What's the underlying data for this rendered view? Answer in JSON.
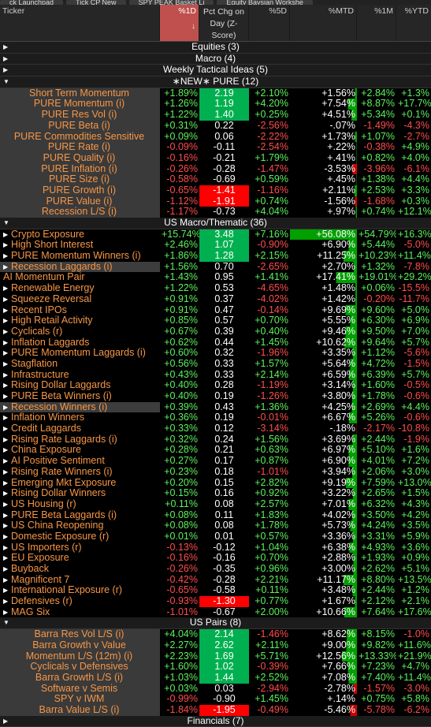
{
  "tabs": [
    "ck Launchpad",
    "Tick CP New",
    "SPY PEAK Basket Li",
    "Equity Baysian Workshe"
  ],
  "header": {
    "ticker": "Ticker",
    "d1": "%1D",
    "pct": "Pct Chg on Day (Z-Score)",
    "d5": "%5D",
    "mtd": "%MTD",
    "m1": "%1M",
    "ytd": "%YTD"
  },
  "colors": {
    "positive": "#5cf25c",
    "negative": "#ff4c4c",
    "name": "#f79646",
    "zcell_pos": "#00b050",
    "zcell_neg": "#ff0000"
  },
  "groups": [
    {
      "label": "Equities (3)",
      "collapsed": true,
      "rows": []
    },
    {
      "label": "Macro (4)",
      "collapsed": true,
      "rows": []
    },
    {
      "label": "Weekly Tactical Ideas (5)",
      "collapsed": true,
      "rows": []
    },
    {
      "label": "∗NEW∗ PURE (12)",
      "collapsed": false,
      "center": true,
      "rows": [
        {
          "n": "Short Term Momentum",
          "d1": "+1.89%",
          "pc": "2.19",
          "d5": "+2.10%",
          "mtd": "+1.56%",
          "m1": "+2.84%",
          "ytd": "+1.3%"
        },
        {
          "n": "PURE Momentum (i)",
          "d1": "+1.26%",
          "pc": "1.19",
          "d5": "+4.20%",
          "mtd": "+7.54%",
          "m1": "+8.87%",
          "ytd": "+17.7%"
        },
        {
          "n": "PURE Res Vol (i)",
          "d1": "+1.22%",
          "pc": "1.40",
          "d5": "+0.25%",
          "mtd": "+4.51%",
          "m1": "+5.34%",
          "ytd": "+0.1%"
        },
        {
          "n": "PURE Beta (i)",
          "d1": "+0.31%",
          "pc": "0.22",
          "d5": "-2.56%",
          "mtd": "-.07%",
          "m1": "-1.49%",
          "ytd": "-4.3%"
        },
        {
          "n": "PURE Commodities Sensitive",
          "d1": "+0.09%",
          "pc": "0.06",
          "d5": "-2.22%",
          "mtd": "+1.73%",
          "m1": "+1.07%",
          "ytd": "-2.7%"
        },
        {
          "n": "PURE Rate (i)",
          "d1": "-0.09%",
          "pc": "-0.11",
          "d5": "-2.54%",
          "mtd": "+.22%",
          "m1": "-0.38%",
          "ytd": "+4.9%"
        },
        {
          "n": "PURE Quality (i)",
          "d1": "-0.16%",
          "pc": "-0.21",
          "d5": "+1.79%",
          "mtd": "+.41%",
          "m1": "+0.82%",
          "ytd": "+4.0%"
        },
        {
          "n": "PURE Inflation (i)",
          "d1": "-0.26%",
          "pc": "-0.28",
          "d5": "-1.47%",
          "mtd": "-3.53%",
          "m1": "-3.96%",
          "ytd": "-6.1%"
        },
        {
          "n": "PURE Size (i)",
          "d1": "-0.58%",
          "pc": "-0.69",
          "d5": "+0.59%",
          "mtd": "+.45%",
          "m1": "+1.38%",
          "ytd": "+4.4%"
        },
        {
          "n": "PURE Growth (i)",
          "d1": "-0.65%",
          "pc": "-1.41",
          "d5": "-1.16%",
          "mtd": "+2.11%",
          "m1": "+2.53%",
          "ytd": "+3.3%"
        },
        {
          "n": "PURE Value (i)",
          "d1": "-1.12%",
          "pc": "-1.91",
          "d5": "+0.74%",
          "mtd": "-1.56%",
          "m1": "-1.68%",
          "ytd": "+0.3%"
        },
        {
          "n": "Recession L/S (i)",
          "d1": "-1.17%",
          "pc": "-0.73",
          "d5": "+4.04%",
          "mtd": "+.97%",
          "m1": "+0.74%",
          "ytd": "+12.1%"
        }
      ]
    },
    {
      "label": "US Macro/Thematic (36)",
      "collapsed": false,
      "rows": [
        {
          "n": "Crypto Exposure",
          "d1": "+15.74%",
          "pc": "3.48",
          "d5": "+7.16%",
          "mtd": "+56.08%",
          "m1": "+54.79%",
          "ytd": "+16.3%"
        },
        {
          "n": "High Short Interest",
          "d1": "+2.46%",
          "pc": "1.07",
          "d5": "-0.90%",
          "mtd": "+6.90%",
          "m1": "+5.44%",
          "ytd": "-5.0%"
        },
        {
          "n": "PURE Momentum Winners (i)",
          "d1": "+1.86%",
          "pc": "1.28",
          "d5": "+2.15%",
          "mtd": "+11.25%",
          "m1": "+10.23%",
          "ytd": "+11.4%"
        },
        {
          "n": "Recession Laggards (i)",
          "d1": "+1.56%",
          "pc": "0.70",
          "d5": "-2.65%",
          "mtd": "+2.70%",
          "m1": "+1.32%",
          "ytd": "-7.8%",
          "sel": true
        },
        {
          "n": "AI Momentum Pair",
          "d1": "+1.43%",
          "pc": "0.95",
          "d5": "+1.41%",
          "mtd": "+17.41%",
          "m1": "+19.01%",
          "ytd": "+29.2%",
          "nomk": true
        },
        {
          "n": "Renewable Energy",
          "d1": "+1.22%",
          "pc": "0.53",
          "d5": "-4.65%",
          "mtd": "+1.48%",
          "m1": "+0.06%",
          "ytd": "-15.5%"
        },
        {
          "n": "Squeeze Reversal",
          "d1": "+0.91%",
          "pc": "0.37",
          "d5": "-4.02%",
          "mtd": "+1.42%",
          "m1": "-0.20%",
          "ytd": "-11.7%"
        },
        {
          "n": "Recent IPOs",
          "d1": "+0.91%",
          "pc": "0.47",
          "d5": "-0.14%",
          "mtd": "+9.69%",
          "m1": "+9.60%",
          "ytd": "+5.0%"
        },
        {
          "n": "High Retail Activity",
          "d1": "+0.85%",
          "pc": "0.57",
          "d5": "+0.70%",
          "mtd": "+5.55%",
          "m1": "+6.30%",
          "ytd": "+6.9%"
        },
        {
          "n": "Cyclicals (r)",
          "d1": "+0.67%",
          "pc": "0.39",
          "d5": "+0.40%",
          "mtd": "+9.46%",
          "m1": "+9.50%",
          "ytd": "+7.0%"
        },
        {
          "n": "Inflation Laggards",
          "d1": "+0.62%",
          "pc": "0.44",
          "d5": "+1.45%",
          "mtd": "+10.62%",
          "m1": "+9.64%",
          "ytd": "+5.7%"
        },
        {
          "n": "PURE Momentum Laggards (i)",
          "d1": "+0.60%",
          "pc": "0.32",
          "d5": "-1.96%",
          "mtd": "+3.35%",
          "m1": "+1.12%",
          "ytd": "-5.6%"
        },
        {
          "n": "Stagflation",
          "d1": "+0.56%",
          "pc": "0.33",
          "d5": "+1.57%",
          "mtd": "+5.64%",
          "m1": "+4.72%",
          "ytd": "-1.5%"
        },
        {
          "n": "Infrastructure",
          "d1": "+0.43%",
          "pc": "0.33",
          "d5": "+2.14%",
          "mtd": "+6.59%",
          "m1": "+6.39%",
          "ytd": "+5.7%"
        },
        {
          "n": "Rising Dollar Laggards",
          "d1": "+0.40%",
          "pc": "0.28",
          "d5": "-1.19%",
          "mtd": "+3.14%",
          "m1": "+1.60%",
          "ytd": "-0.5%"
        },
        {
          "n": "PURE Beta Winners (i)",
          "d1": "+0.40%",
          "pc": "0.19",
          "d5": "-1.26%",
          "mtd": "+3.80%",
          "m1": "+1.78%",
          "ytd": "-0.6%"
        },
        {
          "n": "Recession Winners (i)",
          "d1": "+0.39%",
          "pc": "0.43",
          "d5": "+1.36%",
          "mtd": "+4.25%",
          "m1": "+2.69%",
          "ytd": "+4.4%",
          "sel": true
        },
        {
          "n": "Inflation Winners",
          "d1": "+0.36%",
          "pc": "0.19",
          "d5": "-0.01%",
          "mtd": "+6.67%",
          "m1": "+5.26%",
          "ytd": "-0.6%"
        },
        {
          "n": "Credit Laggards",
          "d1": "+0.33%",
          "pc": "0.12",
          "d5": "-3.14%",
          "mtd": "-.18%",
          "m1": "-2.17%",
          "ytd": "-10.8%"
        },
        {
          "n": "Rising Rate Laggards (i)",
          "d1": "+0.32%",
          "pc": "0.24",
          "d5": "+1.56%",
          "mtd": "+3.69%",
          "m1": "+2.44%",
          "ytd": "-1.9%"
        },
        {
          "n": "China Exposure",
          "d1": "+0.28%",
          "pc": "0.21",
          "d5": "+0.63%",
          "mtd": "+6.97%",
          "m1": "+5.10%",
          "ytd": "+1.6%"
        },
        {
          "n": "AI Positive Sentiment",
          "d1": "+0.27%",
          "pc": "0.17",
          "d5": "+0.87%",
          "mtd": "+6.90%",
          "m1": "+4.01%",
          "ytd": "+7.2%"
        },
        {
          "n": "Rising Rate Winners (i)",
          "d1": "+0.23%",
          "pc": "0.18",
          "d5": "-1.01%",
          "mtd": "+3.94%",
          "m1": "+2.06%",
          "ytd": "+3.0%"
        },
        {
          "n": "Emerging Mkt Exposure",
          "d1": "+0.20%",
          "pc": "0.15",
          "d5": "+2.82%",
          "mtd": "+9.19%",
          "m1": "+7.59%",
          "ytd": "+13.0%"
        },
        {
          "n": "Rising Dollar Winners",
          "d1": "+0.15%",
          "pc": "0.16",
          "d5": "+0.92%",
          "mtd": "+3.22%",
          "m1": "+2.65%",
          "ytd": "+1.5%"
        },
        {
          "n": "US Housing (r)",
          "d1": "+0.11%",
          "pc": "0.08",
          "d5": "+2.57%",
          "mtd": "+7.01%",
          "m1": "+6.32%",
          "ytd": "+4.3%"
        },
        {
          "n": "PURE Beta Laggards (i)",
          "d1": "+0.08%",
          "pc": "0.11",
          "d5": "+1.83%",
          "mtd": "+4.02%",
          "m1": "+3.50%",
          "ytd": "+4.2%"
        },
        {
          "n": "US China Reopening",
          "d1": "+0.08%",
          "pc": "0.08",
          "d5": "+1.78%",
          "mtd": "+5.73%",
          "m1": "+4.24%",
          "ytd": "+3.5%"
        },
        {
          "n": "Domestic Exposure (r)",
          "d1": "+0.01%",
          "pc": "0.01",
          "d5": "+0.57%",
          "mtd": "+3.36%",
          "m1": "+3.31%",
          "ytd": "+5.9%"
        },
        {
          "n": "US Importers (r)",
          "d1": "-0.13%",
          "pc": "-0.12",
          "d5": "+1.04%",
          "mtd": "+6.38%",
          "m1": "+4.93%",
          "ytd": "+3.6%"
        },
        {
          "n": "EU Exposure",
          "d1": "-0.16%",
          "pc": "-0.16",
          "d5": "+0.70%",
          "mtd": "+2.88%",
          "m1": "+1.93%",
          "ytd": "+0.9%"
        },
        {
          "n": "Buyback",
          "d1": "-0.26%",
          "pc": "-0.35",
          "d5": "+0.96%",
          "mtd": "+3.00%",
          "m1": "+2.62%",
          "ytd": "+5.1%"
        },
        {
          "n": "Magnificent 7",
          "d1": "-0.42%",
          "pc": "-0.28",
          "d5": "+2.21%",
          "mtd": "+11.17%",
          "m1": "+8.80%",
          "ytd": "+13.5%"
        },
        {
          "n": "International Exposure (r)",
          "d1": "-0.65%",
          "pc": "-0.58",
          "d5": "+0.11%",
          "mtd": "+3.48%",
          "m1": "+2.44%",
          "ytd": "+1.2%"
        },
        {
          "n": "Defensives (r)",
          "d1": "-0.93%",
          "pc": "-1.30",
          "d5": "+0.77%",
          "mtd": "+1.67%",
          "m1": "+2.12%",
          "ytd": "+2.1%"
        },
        {
          "n": "MAG Six",
          "d1": "-1.01%",
          "pc": "-0.67",
          "d5": "+2.00%",
          "mtd": "+10.66%",
          "m1": "+7.64%",
          "ytd": "+17.6%"
        }
      ]
    },
    {
      "label": "US Pairs (8)",
      "collapsed": false,
      "center": true,
      "rows": [
        {
          "n": "Barra Res Vol L/S (i)",
          "d1": "+4.04%",
          "pc": "2.14",
          "d5": "-1.46%",
          "mtd": "+8.62%",
          "m1": "+8.15%",
          "ytd": "-1.0%"
        },
        {
          "n": "Barra Growth v Value",
          "d1": "+2.27%",
          "pc": "2.62",
          "d5": "+2.11%",
          "mtd": "+9.00%",
          "m1": "+9.82%",
          "ytd": "+11.6%"
        },
        {
          "n": "Momentum L/S (12m) (i)",
          "d1": "+2.23%",
          "pc": "1.69",
          "d5": "+5.71%",
          "mtd": "+12.56%",
          "m1": "+13.33%",
          "ytd": "+21.9%"
        },
        {
          "n": "Cyclicals v Defensives",
          "d1": "+1.60%",
          "pc": "1.02",
          "d5": "-0.39%",
          "mtd": "+7.66%",
          "m1": "+7.23%",
          "ytd": "+4.7%"
        },
        {
          "n": "Barra Growth L/S (i)",
          "d1": "+1.03%",
          "pc": "1.44",
          "d5": "+2.52%",
          "mtd": "+7.08%",
          "m1": "+7.40%",
          "ytd": "+11.4%"
        },
        {
          "n": "Software v Semis",
          "d1": "+0.03%",
          "pc": "0.03",
          "d5": "-2.94%",
          "mtd": "-2.78%",
          "m1": "-1.57%",
          "ytd": "-3.0%"
        },
        {
          "n": "SPY v IWM",
          "d1": "-0.99%",
          "pc": "-0.90",
          "d5": "+1.45%",
          "mtd": "+.14%",
          "m1": "+0.75%",
          "ytd": "+5.8%"
        },
        {
          "n": "Barra Value L/S (i)",
          "d1": "-1.84%",
          "pc": "-1.95",
          "d5": "-0.49%",
          "mtd": "-5.46%",
          "m1": "-5.78%",
          "ytd": "-6.2%"
        }
      ]
    },
    {
      "label": "Financials (7)",
      "collapsed": true,
      "rows": []
    }
  ]
}
